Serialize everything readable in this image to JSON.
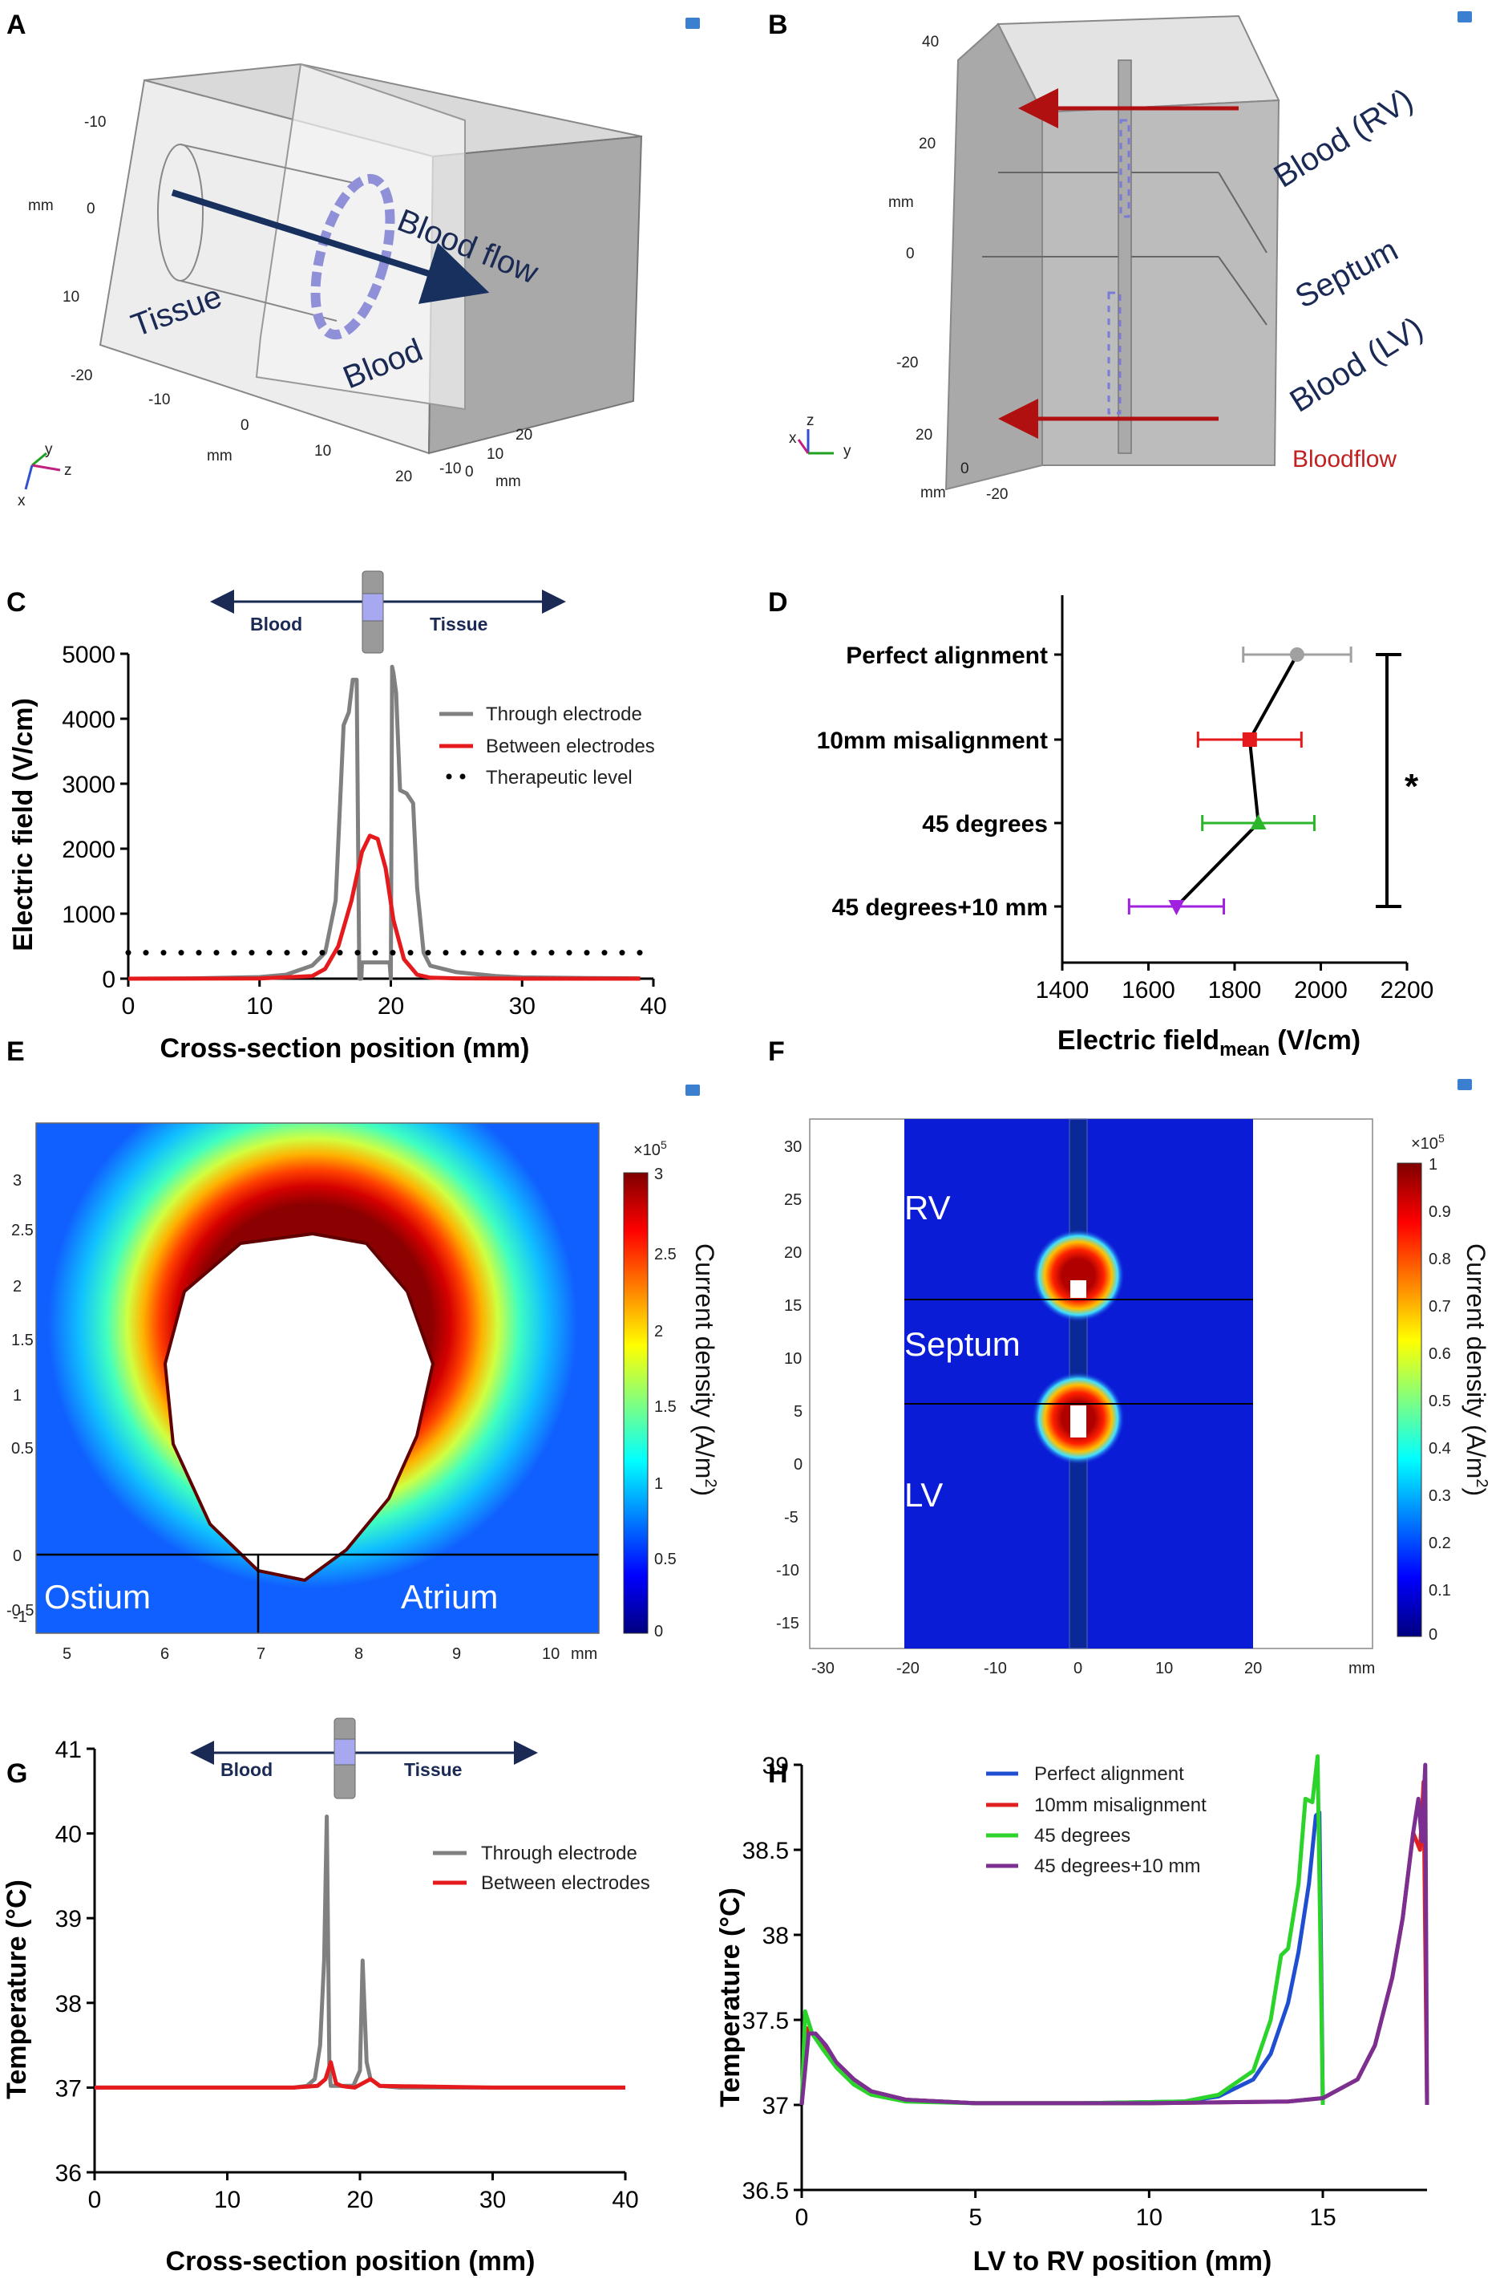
{
  "panels": {
    "A": {
      "label": "A",
      "tissue": "Tissue",
      "blood": "Blood",
      "flow": "Blood flow",
      "ticks_left": [
        "-10",
        "0",
        "10",
        "-20"
      ],
      "ticks_bottom": [
        "-10",
        "0",
        "10",
        "20"
      ],
      "ticks_right": [
        "20",
        "10",
        "0",
        "-10"
      ],
      "unit_left": "mm",
      "unit_bottom": "mm",
      "unit_right": "mm",
      "axes": {
        "y": "y",
        "z": "z",
        "x": "x"
      }
    },
    "B": {
      "label": "B",
      "rv": "Blood (RV)",
      "septum": "Septum",
      "lv": "Blood (LV)",
      "bloodflow": "Bloodflow",
      "ticks_left": [
        "40",
        "20",
        "0",
        "-20"
      ],
      "ticks_bottom": [
        "20",
        "0",
        "-20"
      ],
      "unit_left": "mm",
      "unit_bottom": "mm",
      "axes": {
        "z": "z",
        "x": "x",
        "y": "y"
      }
    },
    "E": {
      "label": "E",
      "ostium": "Ostium",
      "atrium": "Atrium",
      "yticks": [
        "3",
        "2.5",
        "2",
        "1.5",
        "1",
        "0.5",
        "0",
        "-0.5",
        "-1"
      ],
      "xticks": [
        "5",
        "6",
        "7",
        "8",
        "9",
        "10"
      ],
      "unit": "mm",
      "colorbar": {
        "exp": "×10",
        "exp_power": "5",
        "max": "3",
        "ticks": [
          "2.5",
          "2",
          "1.5",
          "1",
          "0.5",
          "0"
        ],
        "title": "Current density (A/m",
        "title_sup": "2",
        "title_end": ")"
      }
    },
    "F": {
      "label": "F",
      "rv": "RV",
      "septum": "Septum",
      "lv": "LV",
      "yticks": [
        "30",
        "25",
        "20",
        "15",
        "10",
        "5",
        "0",
        "-5",
        "-10",
        "-15"
      ],
      "xticks": [
        "-30",
        "-20",
        "-10",
        "0",
        "10",
        "20"
      ],
      "unit": "mm",
      "colorbar": {
        "exp": "×10",
        "exp_power": "5",
        "max": "1",
        "ticks": [
          "0.9",
          "0.8",
          "0.7",
          "0.6",
          "0.5",
          "0.4",
          "0.3",
          "0.2",
          "0.1",
          "0"
        ],
        "title": "Current density (A/m",
        "title_sup": "2",
        "title_end": ")"
      }
    }
  },
  "chart_data": [
    {
      "id": "C",
      "label": "C",
      "type": "line",
      "xlabel": "Cross-section position (mm)",
      "ylabel": "Electric field (V/cm)",
      "xlim": [
        0,
        40
      ],
      "ylim": [
        0,
        5000
      ],
      "xticks": [
        "0",
        "10",
        "20",
        "30",
        "40"
      ],
      "yticks": [
        "0",
        "1000",
        "2000",
        "3000",
        "4000",
        "5000"
      ],
      "header": {
        "left": "Blood",
        "right": "Tissue"
      },
      "series": [
        {
          "name": "Through electrode",
          "color": "#808080",
          "style": "solid",
          "x": [
            0,
            5,
            10,
            12,
            14,
            15,
            15.8,
            16.4,
            16.8,
            17.1,
            17.4,
            17.6,
            17.75,
            17.8,
            17.9,
            18.6,
            19.3,
            19.9,
            20,
            20.1,
            20.2,
            20.4,
            20.7,
            21.2,
            21.7,
            22,
            22.5,
            23,
            25,
            28,
            30,
            35,
            39
          ],
          "y": [
            0,
            5,
            25,
            60,
            200,
            400,
            1200,
            3900,
            4100,
            4600,
            4600,
            0,
            0,
            250,
            250,
            250,
            250,
            250,
            0,
            4800,
            4700,
            4400,
            2900,
            2850,
            2700,
            1400,
            400,
            200,
            100,
            40,
            20,
            10,
            5
          ]
        },
        {
          "name": "Between electrodes",
          "color": "#e41a1c",
          "style": "solid",
          "x": [
            0,
            10,
            14,
            15,
            16,
            17,
            17.8,
            18.4,
            19,
            19.6,
            20.2,
            21,
            22,
            23,
            25,
            30,
            39
          ],
          "y": [
            0,
            2,
            40,
            150,
            500,
            1200,
            1950,
            2200,
            2150,
            1700,
            900,
            300,
            60,
            15,
            5,
            0,
            0
          ]
        },
        {
          "name": "Therapeutic level",
          "color": "#000000",
          "style": "dotted",
          "x": [
            0,
            39
          ],
          "y": [
            400,
            400
          ]
        }
      ]
    },
    {
      "id": "D",
      "label": "D",
      "type": "scatter",
      "xlabel": "Electric field",
      "xlabel_sub": "mean",
      "xlabel_end": " (V/cm)",
      "xlim": [
        1400,
        2200
      ],
      "xticks": [
        "1400",
        "1600",
        "1800",
        "2000",
        "2200"
      ],
      "categories": [
        "Perfect alignment",
        "10mm misalignment",
        "45 degrees",
        "45 degrees+10 mm"
      ],
      "values": [
        1945,
        1835,
        1855,
        1665
      ],
      "errors": [
        125,
        120,
        130,
        110
      ],
      "colors": [
        "#a0a0a0",
        "#e41a1c",
        "#2ab52a",
        "#a020e0"
      ],
      "markers": [
        "circle",
        "square",
        "triangle-up",
        "triangle-down"
      ],
      "significance": "*"
    },
    {
      "id": "G",
      "label": "G",
      "type": "line",
      "xlabel": "Cross-section position (mm)",
      "ylabel": "Temperature (°C)",
      "xlim": [
        0,
        40
      ],
      "ylim": [
        36,
        41
      ],
      "xticks": [
        "0",
        "10",
        "20",
        "30",
        "40"
      ],
      "yticks": [
        "36",
        "37",
        "38",
        "39",
        "40",
        "41"
      ],
      "header": {
        "left": "Blood",
        "right": "Tissue"
      },
      "series": [
        {
          "name": "Through electrode",
          "color": "#808080",
          "x": [
            0,
            15,
            16,
            16.6,
            17,
            17.3,
            17.5,
            17.7,
            17.8,
            18.5,
            19.5,
            20,
            20.2,
            20.5,
            20.8,
            21.5,
            23,
            30,
            40
          ],
          "y": [
            37,
            37,
            37.02,
            37.1,
            37.5,
            38.5,
            40.2,
            37.2,
            37.02,
            37.02,
            37.02,
            37.2,
            38.5,
            37.3,
            37.1,
            37.02,
            37,
            37,
            37
          ]
        },
        {
          "name": "Between electrodes",
          "color": "#e41a1c",
          "x": [
            0,
            15,
            16.8,
            17.4,
            17.8,
            18.2,
            18.6,
            19,
            19.6,
            20.2,
            20.8,
            21.5,
            30,
            40
          ],
          "y": [
            37,
            37,
            37.02,
            37.1,
            37.3,
            37.05,
            37.02,
            37.01,
            37,
            37.05,
            37.1,
            37.02,
            37,
            37
          ]
        }
      ]
    },
    {
      "id": "H",
      "label": "H",
      "type": "line",
      "xlabel": "LV to RV position (mm)",
      "ylabel": "Temperature (°C)",
      "xlim": [
        0,
        18
      ],
      "ylim": [
        36.5,
        39
      ],
      "xticks": [
        "0",
        "5",
        "10",
        "15"
      ],
      "yticks": [
        "36.5",
        "37",
        "37.5",
        "38",
        "38.5",
        "39"
      ],
      "series": [
        {
          "name": "Perfect alignment",
          "color": "#1f4fd0",
          "x": [
            0,
            0.15,
            0.3,
            0.6,
            1,
            1.5,
            2,
            3,
            5,
            8,
            11,
            12,
            13,
            13.5,
            14,
            14.3,
            14.6,
            14.8,
            14.9,
            15
          ],
          "y": [
            37,
            37.45,
            37.42,
            37.35,
            37.25,
            37.15,
            37.08,
            37.03,
            37.01,
            37.01,
            37.02,
            37.05,
            37.15,
            37.3,
            37.6,
            37.9,
            38.3,
            38.7,
            38.72,
            37.02
          ]
        },
        {
          "name": "10mm misalignment",
          "color": "#e02020",
          "x": [
            0,
            0.15,
            0.3,
            0.6,
            1,
            1.5,
            2,
            3,
            5,
            10,
            14,
            15,
            16,
            16.5,
            17,
            17.3,
            17.6,
            17.8,
            17.9,
            18
          ],
          "y": [
            37,
            37.45,
            37.42,
            37.35,
            37.25,
            37.15,
            37.08,
            37.03,
            37.01,
            37.01,
            37.02,
            37.04,
            37.15,
            37.35,
            37.75,
            38.1,
            38.6,
            38.5,
            38.9,
            37
          ]
        },
        {
          "name": "45 degrees",
          "color": "#2bd32b",
          "x": [
            0,
            0.1,
            0.3,
            0.6,
            1,
            1.5,
            2,
            3,
            5,
            8,
            11,
            12,
            13,
            13.5,
            13.8,
            14,
            14.3,
            14.5,
            14.7,
            14.85,
            15
          ],
          "y": [
            37,
            37.55,
            37.42,
            37.33,
            37.22,
            37.12,
            37.06,
            37.02,
            37.01,
            37.01,
            37.02,
            37.06,
            37.2,
            37.5,
            37.88,
            37.92,
            38.3,
            38.8,
            38.78,
            39.05,
            37
          ]
        },
        {
          "name": "45 degrees+10 mm",
          "color": "#7b2f90",
          "x": [
            0,
            0.2,
            0.4,
            0.7,
            1,
            1.5,
            2,
            3,
            5,
            10,
            14,
            15,
            16,
            16.5,
            17,
            17.3,
            17.6,
            17.75,
            17.85,
            17.95,
            18
          ],
          "y": [
            37,
            37.42,
            37.42,
            37.35,
            37.25,
            37.15,
            37.08,
            37.03,
            37.01,
            37.01,
            37.02,
            37.04,
            37.15,
            37.35,
            37.75,
            38.1,
            38.6,
            38.8,
            38.55,
            39,
            37
          ]
        }
      ]
    }
  ]
}
